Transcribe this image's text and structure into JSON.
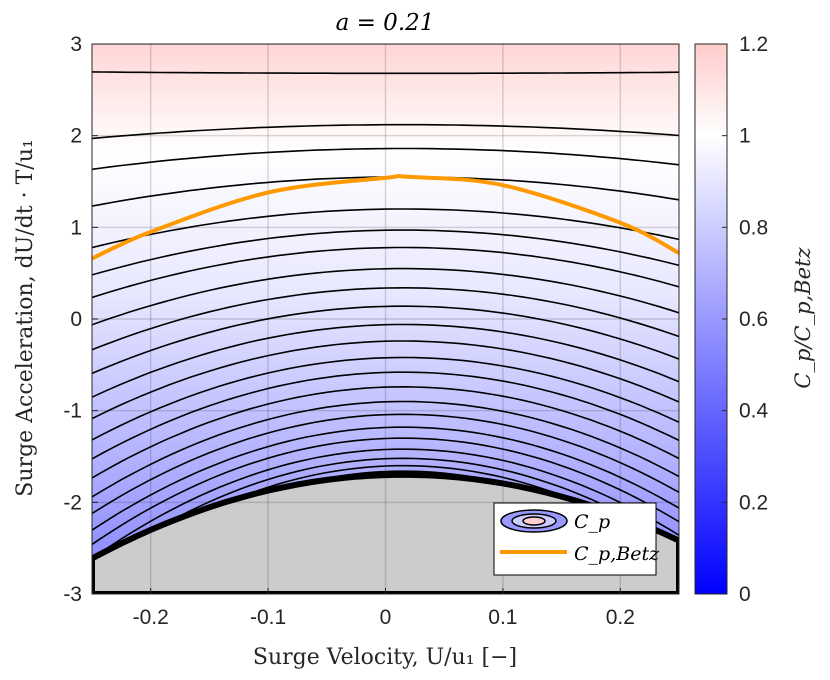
{
  "chart_data": {
    "type": "contour",
    "title": "a = 0.21",
    "xlabel": "Surge Velocity, U/u₁ [−]",
    "ylabel": "Surge Acceleration, dU/dt · T/u₁",
    "xlim": [
      -0.25,
      0.25
    ],
    "ylim": [
      -3,
      3
    ],
    "x_ticks": [
      -0.2,
      -0.1,
      0,
      0.1,
      0.2
    ],
    "x_tick_labels": [
      "-0.2",
      "-0.1",
      "0",
      "0.1",
      "0.2"
    ],
    "y_ticks": [
      -3,
      -2,
      -1,
      0,
      1,
      2,
      3
    ],
    "y_tick_labels": [
      "-3",
      "-2",
      "-1",
      "0",
      "1",
      "2",
      "3"
    ],
    "grid": true,
    "colorbar": {
      "label": "C_p/C_p,Betz",
      "range": [
        0,
        1.2
      ],
      "ticks": [
        0,
        0.2,
        0.4,
        0.6,
        0.8,
        1,
        1.2
      ],
      "tick_labels": [
        "0",
        "0.2",
        "0.4",
        "0.6",
        "0.8",
        "1",
        "1.2"
      ],
      "colors": {
        "low": "#0000ff",
        "mid": "#ffffff",
        "high": "#ffcccc"
      }
    },
    "betz_curve": {
      "name": "C_p,Betz",
      "color": "#ff9900",
      "x": [
        -0.25,
        -0.2,
        -0.1,
        0,
        0.02,
        0.1,
        0.2,
        0.25
      ],
      "y": [
        0.66,
        0.95,
        1.38,
        1.54,
        1.55,
        1.46,
        1.05,
        0.72
      ]
    },
    "contour_peak_x": 0.015,
    "contour_levels_y_at_peak": [
      2.68,
      2.12,
      1.86,
      1.55,
      1.2,
      0.97,
      0.78,
      0.55,
      0.34,
      0.14,
      -0.06,
      -0.24,
      -0.42,
      -0.58,
      -0.74,
      -0.9,
      -1.04,
      -1.18,
      -1.3,
      -1.42,
      -1.52,
      -1.6,
      -1.66
    ],
    "invalid_region_below_y": -1.7,
    "invalid_region_color": "#cccccc",
    "legend": {
      "placement": "bottom-right",
      "entries": [
        "C_p",
        "C_p,Betz"
      ]
    }
  }
}
